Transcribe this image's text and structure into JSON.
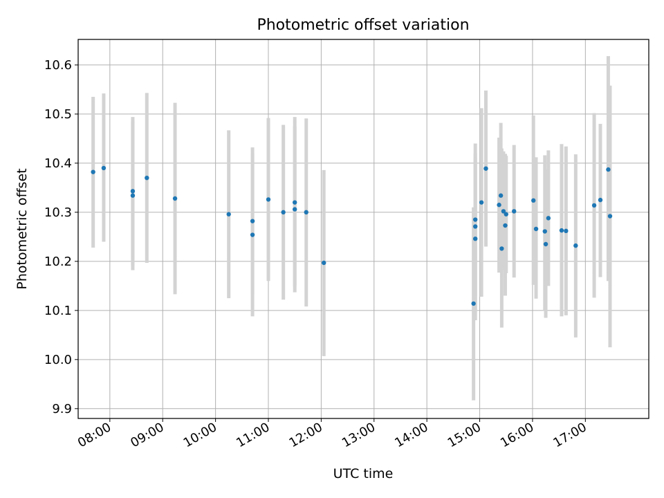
{
  "chart_data": {
    "type": "scatter",
    "title": "Photometric offset variation",
    "xlabel": "UTC time",
    "ylabel": "Photometric offset",
    "x_unit": "UTC time of day (HH:MM)",
    "xlim": [
      "07:24",
      "18:12"
    ],
    "ylim": [
      9.88,
      10.652
    ],
    "grid": true,
    "x_tick_labels": [
      "08:00",
      "09:00",
      "10:00",
      "11:00",
      "12:00",
      "13:00",
      "14:00",
      "15:00",
      "16:00",
      "17:00"
    ],
    "y_ticks": [
      9.9,
      10.0,
      10.1,
      10.2,
      10.3,
      10.4,
      10.5,
      10.6
    ],
    "y_tick_labels": [
      "9.9",
      "10.0",
      "10.1",
      "10.2",
      "10.3",
      "10.4",
      "10.5",
      "10.6"
    ],
    "series_color": "#1f77b4",
    "errorbar_color": "#d3d3d3",
    "points": [
      {
        "x": "07:41",
        "y": 10.382,
        "ylow": 10.228,
        "yhigh": 10.535
      },
      {
        "x": "07:53",
        "y": 10.39,
        "ylow": 10.24,
        "yhigh": 10.542
      },
      {
        "x": "08:26",
        "y": 10.343,
        "ylow": 10.192,
        "yhigh": 10.494
      },
      {
        "x": "08:26",
        "y": 10.334,
        "ylow": 10.182,
        "yhigh": 10.486
      },
      {
        "x": "08:42",
        "y": 10.37,
        "ylow": 10.197,
        "yhigh": 10.543
      },
      {
        "x": "09:14",
        "y": 10.328,
        "ylow": 10.133,
        "yhigh": 10.523
      },
      {
        "x": "10:15",
        "y": 10.296,
        "ylow": 10.125,
        "yhigh": 10.467
      },
      {
        "x": "10:42",
        "y": 10.282,
        "ylow": 10.133,
        "yhigh": 10.432
      },
      {
        "x": "10:42",
        "y": 10.254,
        "ylow": 10.088,
        "yhigh": 10.42
      },
      {
        "x": "11:00",
        "y": 10.326,
        "ylow": 10.16,
        "yhigh": 10.492
      },
      {
        "x": "11:17",
        "y": 10.3,
        "ylow": 10.122,
        "yhigh": 10.478
      },
      {
        "x": "11:30",
        "y": 10.32,
        "ylow": 10.15,
        "yhigh": 10.494
      },
      {
        "x": "11:30",
        "y": 10.306,
        "ylow": 10.137,
        "yhigh": 10.475
      },
      {
        "x": "11:43",
        "y": 10.3,
        "ylow": 10.108,
        "yhigh": 10.491
      },
      {
        "x": "12:03",
        "y": 10.197,
        "ylow": 10.007,
        "yhigh": 10.386
      },
      {
        "x": "14:53",
        "y": 10.114,
        "ylow": 9.917,
        "yhigh": 10.31
      },
      {
        "x": "14:55",
        "y": 10.285,
        "ylow": 10.13,
        "yhigh": 10.44
      },
      {
        "x": "14:55",
        "y": 10.271,
        "ylow": 10.102,
        "yhigh": 10.42
      },
      {
        "x": "14:55",
        "y": 10.246,
        "ylow": 10.08,
        "yhigh": 10.41
      },
      {
        "x": "15:02",
        "y": 10.32,
        "ylow": 10.128,
        "yhigh": 10.512
      },
      {
        "x": "15:07",
        "y": 10.389,
        "ylow": 10.23,
        "yhigh": 10.548
      },
      {
        "x": "15:22",
        "y": 10.315,
        "ylow": 10.177,
        "yhigh": 10.452
      },
      {
        "x": "15:24",
        "y": 10.334,
        "ylow": 10.186,
        "yhigh": 10.482
      },
      {
        "x": "15:25",
        "y": 10.226,
        "ylow": 10.065,
        "yhigh": 10.43
      },
      {
        "x": "15:27",
        "y": 10.302,
        "ylow": 10.182,
        "yhigh": 10.424
      },
      {
        "x": "15:29",
        "y": 10.273,
        "ylow": 10.13,
        "yhigh": 10.419
      },
      {
        "x": "15:30",
        "y": 10.296,
        "ylow": 10.176,
        "yhigh": 10.415
      },
      {
        "x": "15:39",
        "y": 10.302,
        "ylow": 10.167,
        "yhigh": 10.437
      },
      {
        "x": "16:01",
        "y": 10.324,
        "ylow": 10.152,
        "yhigh": 10.497
      },
      {
        "x": "16:04",
        "y": 10.266,
        "ylow": 10.124,
        "yhigh": 10.412
      },
      {
        "x": "16:14",
        "y": 10.261,
        "ylow": 10.1,
        "yhigh": 10.416
      },
      {
        "x": "16:15",
        "y": 10.235,
        "ylow": 10.085,
        "yhigh": 10.388
      },
      {
        "x": "16:18",
        "y": 10.288,
        "ylow": 10.15,
        "yhigh": 10.426
      },
      {
        "x": "16:33",
        "y": 10.263,
        "ylow": 10.088,
        "yhigh": 10.439
      },
      {
        "x": "16:38",
        "y": 10.262,
        "ylow": 10.09,
        "yhigh": 10.434
      },
      {
        "x": "16:49",
        "y": 10.232,
        "ylow": 10.045,
        "yhigh": 10.418
      },
      {
        "x": "17:10",
        "y": 10.314,
        "ylow": 10.126,
        "yhigh": 10.502
      },
      {
        "x": "17:17",
        "y": 10.325,
        "ylow": 10.168,
        "yhigh": 10.48
      },
      {
        "x": "17:26",
        "y": 10.387,
        "ylow": 10.16,
        "yhigh": 10.618
      },
      {
        "x": "17:28",
        "y": 10.292,
        "ylow": 10.025,
        "yhigh": 10.558
      }
    ]
  }
}
